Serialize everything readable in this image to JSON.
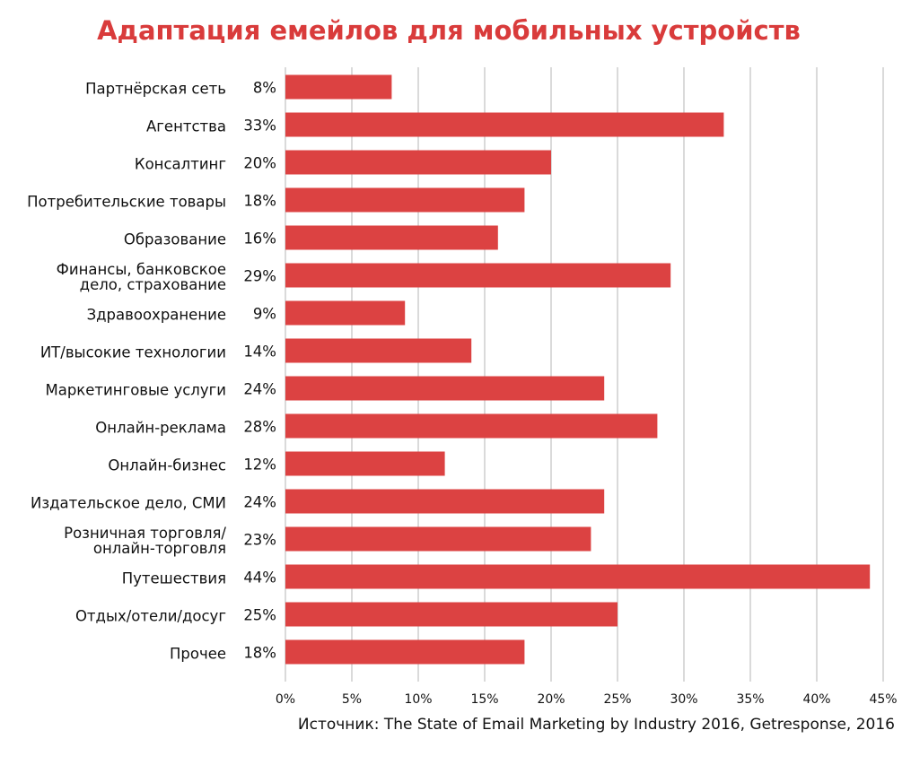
{
  "chart_data": {
    "type": "bar",
    "orientation": "horizontal",
    "title": "Адаптация емейлов для мобильных устройств",
    "source": "Источник: The State of Email Marketing by Industry 2016, Getresponse, 2016",
    "categories": [
      "Партнёрская сеть",
      "Агентства",
      "Консалтинг",
      "Потребительские товары",
      "Образование",
      "Финансы, банковское\nдело, страхование",
      "Здравоохранение",
      "ИТ/высокие технологии",
      "Маркетинговые услуги",
      "Онлайн-реклама",
      "Онлайн-бизнес",
      "Издательское дело, СМИ",
      "Розничная торговля/\nонлайн-торговля",
      "Путешествия",
      "Отдых/отели/досуг",
      "Прочее"
    ],
    "values": [
      8,
      33,
      20,
      18,
      16,
      29,
      9,
      14,
      24,
      28,
      12,
      24,
      23,
      44,
      25,
      18
    ],
    "value_labels": [
      "8%",
      "33%",
      "20%",
      "18%",
      "16%",
      "29%",
      "9%",
      "14%",
      "24%",
      "28%",
      "12%",
      "24%",
      "23%",
      "44%",
      "25%",
      "18%"
    ],
    "color": "#dc4242",
    "xlim": [
      0,
      45
    ],
    "xticks": [
      {
        "value": 0,
        "label": "0%"
      },
      {
        "value": 5,
        "label": "5%"
      },
      {
        "value": 10,
        "label": "10%"
      },
      {
        "value": 15,
        "label": "15%"
      },
      {
        "value": 20,
        "label": "20%"
      },
      {
        "value": 25,
        "label": "25%"
      },
      {
        "value": 30,
        "label": "30%"
      },
      {
        "value": 35,
        "label": "35%"
      },
      {
        "value": 40,
        "label": "40%"
      },
      {
        "value": 45,
        "label": "45%"
      }
    ],
    "grid": true
  }
}
